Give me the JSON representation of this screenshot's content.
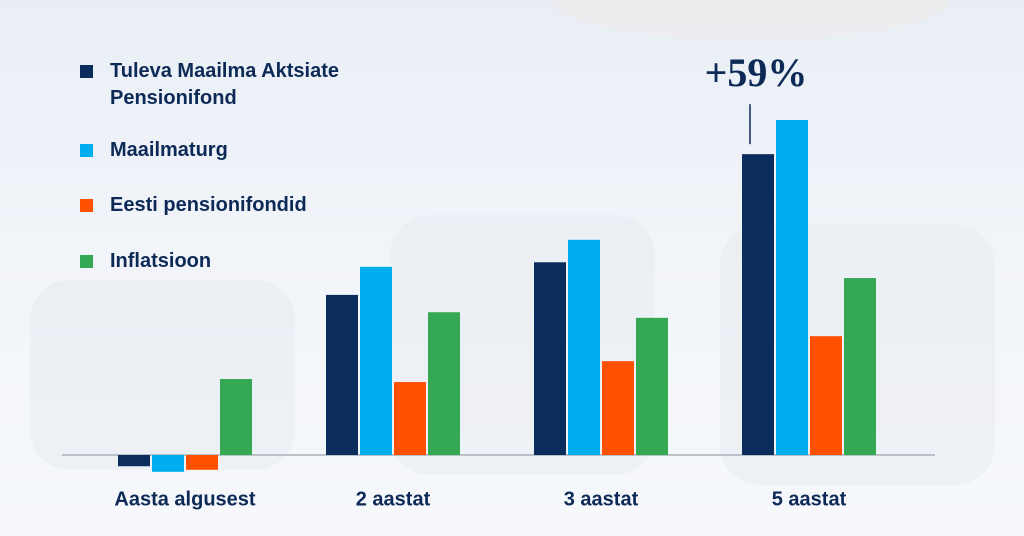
{
  "chart_data": {
    "type": "bar",
    "categories": [
      "Aasta algusest",
      "2 aastat",
      "3 aastat",
      "5 aastat"
    ],
    "series": [
      {
        "name": "Tuleva Maailma Aktsiate Pensionifond",
        "color": "#0b2d5e",
        "values": [
          -2.2,
          31.4,
          37.8,
          59
        ],
        "value_labels": [
          null,
          null,
          null,
          "+59%"
        ]
      },
      {
        "name": "Maailmaturg",
        "color": "#00aeef",
        "values": [
          -3.3,
          36.9,
          42.2,
          65.7
        ]
      },
      {
        "name": "Eesti pensionifondid",
        "color": "#ff4f00",
        "values": [
          -2.9,
          14.3,
          18.4,
          23.3
        ]
      },
      {
        "name": "Inflatsioon",
        "color": "#34a853",
        "values": [
          14.9,
          28.0,
          26.9,
          34.7
        ]
      }
    ]
  }
}
